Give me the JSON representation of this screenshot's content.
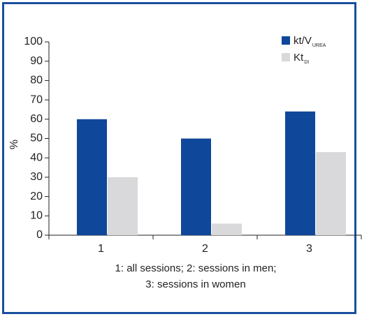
{
  "chart_data": {
    "type": "bar",
    "categories": [
      "1",
      "2",
      "3"
    ],
    "series": [
      {
        "name": "kt/V",
        "name_sub": "UREA",
        "color": "#0f479b",
        "values": [
          60,
          50,
          64
        ]
      },
      {
        "name": "Kt",
        "name_sub": "DI",
        "color": "#d9d9db",
        "values": [
          30,
          6,
          43
        ]
      }
    ],
    "ylabel": "%",
    "ylim": [
      0,
      100
    ],
    "yticks": [
      0,
      10,
      20,
      30,
      40,
      50,
      60,
      70,
      80,
      90,
      100
    ],
    "xlabel_lines": [
      "1: all sessions; 2: sessions in men;",
      "3: sessions in women"
    ],
    "grid": false,
    "legend_position": "top-right"
  },
  "colors": {
    "frame": "#1a4fa0"
  }
}
